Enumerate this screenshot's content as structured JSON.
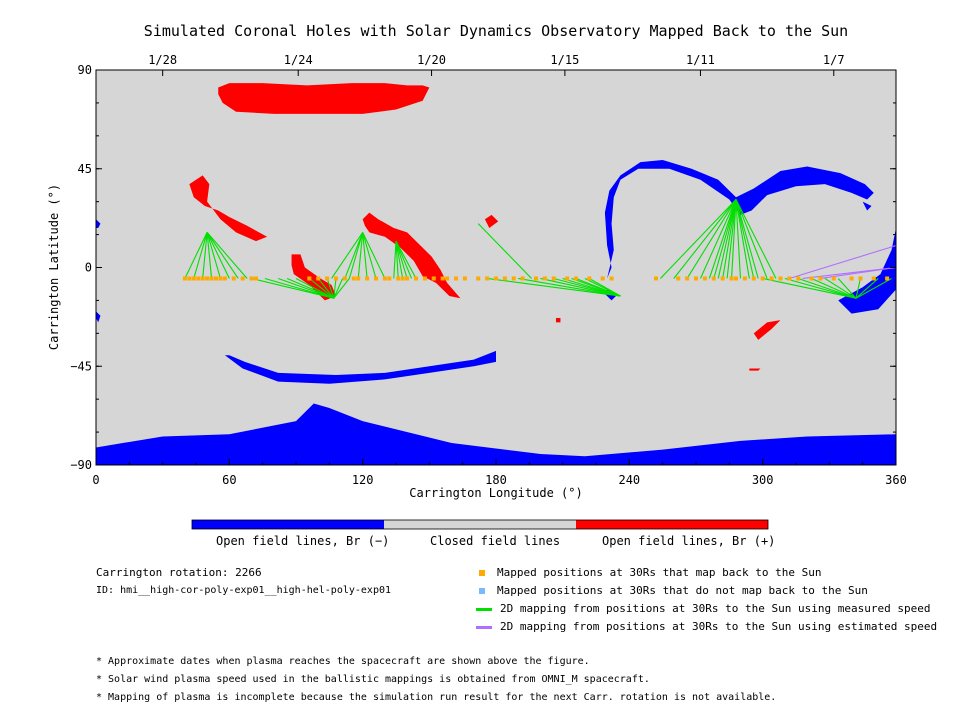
{
  "chart_data": {
    "type": "scatter",
    "title": "Simulated Coronal Holes with Solar Dynamics Observatory Mapped Back to the Sun",
    "xlabel": "Carrington Longitude (°)",
    "ylabel": "Carrington Latitude (°)",
    "xlim": [
      0,
      360
    ],
    "ylim": [
      -90,
      90
    ],
    "x_ticks": [
      "0",
      "60",
      "120",
      "180",
      "240",
      "300",
      "360"
    ],
    "y_ticks": [
      "90",
      "45",
      "0",
      "−45",
      "−90"
    ],
    "top_axis": {
      "ticks": [
        {
          "label": "1/28",
          "lon": 30
        },
        {
          "label": "1/24",
          "lon": 91
        },
        {
          "label": "1/20",
          "lon": 151
        },
        {
          "label": "1/15",
          "lon": 211
        },
        {
          "label": "1/11",
          "lon": 272
        },
        {
          "label": "1/7",
          "lon": 332
        }
      ]
    },
    "colorbar": [
      {
        "label": "Open field lines, Br (−)",
        "color": "#0000ff"
      },
      {
        "label": "Closed field lines",
        "color": "#d6d6d6"
      },
      {
        "label": "Open field lines, Br (+)",
        "color": "#ff0000"
      }
    ],
    "colors": {
      "background": "#d6d6d6",
      "negative": "#0000ff",
      "positive": "#ff0000",
      "mapped": "#ffaa00",
      "unmapped": "#7ab8ff",
      "measured": "#00e000",
      "estimated": "#b070ff"
    },
    "coronal_holes": {
      "positive": [
        [
          [
            55,
            82
          ],
          [
            60,
            84
          ],
          [
            75,
            84
          ],
          [
            95,
            83
          ],
          [
            115,
            84
          ],
          [
            130,
            84
          ],
          [
            140,
            83
          ],
          [
            147,
            83
          ],
          [
            150,
            82
          ],
          [
            147,
            76
          ],
          [
            135,
            72
          ],
          [
            120,
            70
          ],
          [
            100,
            70
          ],
          [
            80,
            70
          ],
          [
            63,
            71
          ],
          [
            57,
            75
          ],
          [
            55,
            79
          ]
        ],
        [
          [
            42,
            38
          ],
          [
            48,
            42
          ],
          [
            51,
            38
          ],
          [
            50,
            30
          ],
          [
            56,
            22
          ],
          [
            63,
            16
          ],
          [
            72,
            12
          ],
          [
            77,
            14
          ],
          [
            68,
            19
          ],
          [
            60,
            23
          ],
          [
            55,
            26
          ],
          [
            49,
            28
          ],
          [
            44,
            32
          ]
        ],
        [
          [
            88,
            6
          ],
          [
            92,
            6
          ],
          [
            94,
            0
          ],
          [
            101,
            -5
          ],
          [
            106,
            -8
          ],
          [
            108,
            -13
          ],
          [
            103,
            -15
          ],
          [
            96,
            -8
          ],
          [
            89,
            -3
          ],
          [
            88,
            1
          ]
        ],
        [
          [
            120,
            22
          ],
          [
            123,
            25
          ],
          [
            127,
            22
          ],
          [
            134,
            18
          ],
          [
            140,
            16
          ],
          [
            146,
            10
          ],
          [
            151,
            5
          ],
          [
            155,
            -1
          ],
          [
            158,
            -7
          ],
          [
            164,
            -14
          ],
          [
            159,
            -13
          ],
          [
            153,
            -7
          ],
          [
            147,
            -4
          ],
          [
            143,
            3
          ],
          [
            137,
            9
          ],
          [
            130,
            14
          ],
          [
            123,
            16
          ],
          [
            121,
            19
          ]
        ],
        [
          [
            175,
            22
          ],
          [
            178,
            24
          ],
          [
            181,
            21
          ],
          [
            177,
            18
          ]
        ],
        [
          [
            296,
            -30
          ],
          [
            302,
            -25
          ],
          [
            308,
            -24
          ],
          [
            304,
            -28
          ],
          [
            298,
            -33
          ]
        ],
        [
          [
            294,
            -46
          ],
          [
            299,
            -46
          ],
          [
            298,
            -47
          ],
          [
            294,
            -47
          ]
        ],
        [
          [
            207,
            -23
          ],
          [
            209,
            -23
          ],
          [
            209,
            -25
          ],
          [
            207,
            -25
          ]
        ]
      ],
      "negative": [
        [
          [
            0,
            -82
          ],
          [
            30,
            -77
          ],
          [
            60,
            -76
          ],
          [
            90,
            -70
          ],
          [
            98,
            -62
          ],
          [
            105,
            -64
          ],
          [
            120,
            -70
          ],
          [
            160,
            -80
          ],
          [
            200,
            -85
          ],
          [
            220,
            -86
          ],
          [
            255,
            -83
          ],
          [
            290,
            -79
          ],
          [
            320,
            -77
          ],
          [
            360,
            -76
          ],
          [
            360,
            -90
          ],
          [
            0,
            -90
          ]
        ],
        [
          [
            58,
            -40
          ],
          [
            66,
            -46
          ],
          [
            82,
            -52
          ],
          [
            105,
            -53
          ],
          [
            130,
            -51
          ],
          [
            150,
            -48
          ],
          [
            170,
            -45
          ],
          [
            180,
            -43
          ],
          [
            180,
            -38
          ],
          [
            170,
            -42
          ],
          [
            150,
            -45
          ],
          [
            130,
            -48
          ],
          [
            108,
            -49
          ],
          [
            82,
            -48
          ],
          [
            67,
            -43
          ],
          [
            60,
            -40
          ]
        ],
        [
          [
            230,
            -10
          ],
          [
            234,
            -13
          ],
          [
            232,
            -15
          ],
          [
            229,
            -12
          ]
        ],
        [
          [
            230,
            -5
          ],
          [
            232,
            0
          ],
          [
            230,
            10
          ],
          [
            229,
            25
          ],
          [
            231,
            35
          ],
          [
            236,
            42
          ],
          [
            245,
            48
          ],
          [
            255,
            49
          ],
          [
            268,
            45
          ],
          [
            280,
            40
          ],
          [
            288,
            32
          ],
          [
            296,
            36
          ],
          [
            308,
            44
          ],
          [
            320,
            46
          ],
          [
            335,
            43
          ],
          [
            346,
            38
          ],
          [
            350,
            34
          ],
          [
            347,
            31
          ],
          [
            340,
            34
          ],
          [
            328,
            38
          ],
          [
            315,
            37
          ],
          [
            302,
            33
          ],
          [
            295,
            26
          ],
          [
            290,
            24
          ],
          [
            285,
            31
          ],
          [
            272,
            40
          ],
          [
            258,
            45
          ],
          [
            244,
            45
          ],
          [
            236,
            40
          ],
          [
            233,
            32
          ],
          [
            232,
            20
          ],
          [
            233,
            8
          ]
        ],
        [
          [
            334,
            -15
          ],
          [
            345,
            -9
          ],
          [
            353,
            -3
          ],
          [
            358,
            8
          ],
          [
            360,
            18
          ],
          [
            360,
            -10
          ],
          [
            352,
            -19
          ],
          [
            340,
            -21
          ]
        ],
        [
          [
            0,
            22
          ],
          [
            2,
            20
          ],
          [
            1,
            18
          ],
          [
            0,
            18
          ]
        ],
        [
          [
            0,
            -20
          ],
          [
            2,
            -22
          ],
          [
            1,
            -25
          ],
          [
            0,
            -23
          ]
        ],
        [
          [
            345,
            30
          ],
          [
            347,
            26
          ],
          [
            349,
            28
          ]
        ]
      ]
    },
    "mapped_points": {
      "lat": -5,
      "lon": [
        40,
        42,
        44,
        46,
        48,
        50,
        52,
        54,
        56,
        58,
        62,
        66,
        70,
        72,
        96,
        100,
        104,
        108,
        112,
        116,
        118,
        122,
        126,
        130,
        132,
        136,
        138,
        140,
        144,
        148,
        152,
        156,
        158,
        162,
        166,
        172,
        176,
        180,
        184,
        188,
        192,
        198,
        202,
        206,
        212,
        216,
        222,
        228,
        232,
        252,
        262,
        266,
        270,
        274,
        278,
        282,
        286,
        288,
        292,
        296,
        300,
        304,
        308,
        312,
        316,
        322,
        326,
        332,
        340,
        344,
        350,
        356
      ]
    },
    "green_lines": [
      {
        "from": [
          50,
          16
        ],
        "to": [
          40,
          44,
          48,
          52,
          56,
          60,
          64,
          68
        ]
      },
      {
        "from": [
          107,
          -14
        ],
        "to": [
          70,
          76,
          82,
          86,
          90,
          96,
          100,
          104,
          108,
          111,
          114
        ]
      },
      {
        "from": [
          120,
          16
        ],
        "to": [
          106,
          112,
          114,
          118,
          122,
          126,
          130
        ]
      },
      {
        "from": [
          135,
          12
        ],
        "to": [
          134,
          136,
          138,
          140,
          142,
          144
        ]
      },
      {
        "from": [
          172,
          20
        ],
        "to": [
          196
        ]
      },
      {
        "from": [
          236,
          -13
        ],
        "to": [
          176,
          190,
          200,
          206,
          210,
          214,
          216,
          220,
          222
        ]
      },
      {
        "from": [
          288,
          31
        ],
        "to": [
          254,
          260,
          266,
          272,
          276,
          278,
          280,
          282,
          284,
          286,
          290,
          294,
          296,
          298,
          302,
          306
        ]
      },
      {
        "from": [
          342,
          -14
        ],
        "to": [
          300,
          310,
          316,
          322,
          328,
          334,
          344,
          352,
          358
        ]
      }
    ],
    "purple_lines": [
      {
        "from": [
          360,
          10
        ],
        "to": [
          312
        ]
      },
      {
        "from": [
          360,
          0
        ],
        "to": [
          318,
          326
        ]
      }
    ],
    "legend": [
      {
        "marker": "square",
        "color": "#ffaa00",
        "label": "Mapped positions at 30Rs that map back to the Sun"
      },
      {
        "marker": "square",
        "color": "#7ab8ff",
        "label": "Mapped positions at 30Rs that do not map back to the Sun"
      },
      {
        "marker": "line",
        "color": "#00e000",
        "label": "2D mapping from positions at 30Rs to the Sun using measured speed"
      },
      {
        "marker": "line",
        "color": "#b070ff",
        "label": "2D mapping from positions at 30Rs to the Sun using estimated speed"
      }
    ]
  },
  "info": {
    "rotation": "Carrington rotation: 2266",
    "id": "ID: hmi__high-cor-poly-exp01__high-hel-poly-exp01"
  },
  "notes": [
    "* Approximate dates when plasma reaches the spacecraft are shown above the figure.",
    "* Solar wind plasma speed used in the ballistic mappings is obtained from OMNI_M spacecraft.",
    "* Mapping of plasma is incomplete because the simulation run result for the next Carr. rotation is not available."
  ]
}
